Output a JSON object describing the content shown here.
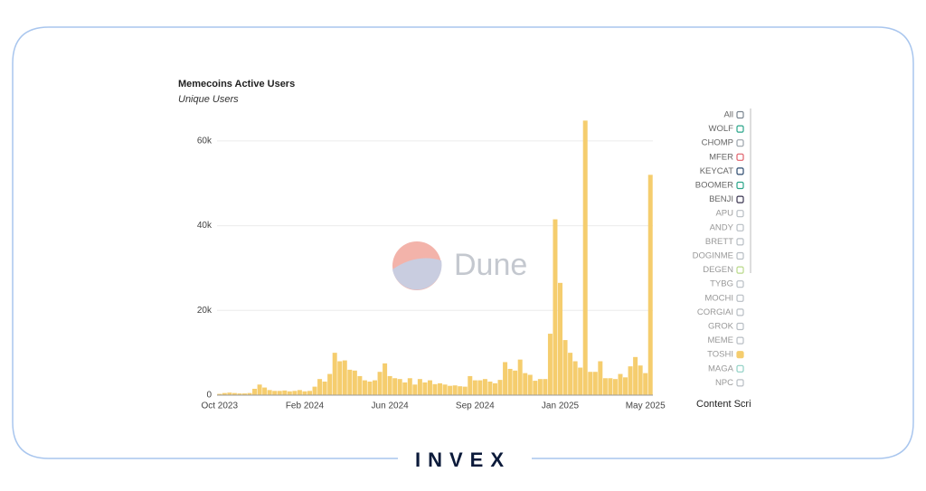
{
  "chart_data": {
    "type": "bar",
    "title": "Memecoins Active Users",
    "subtitle": "Unique Users",
    "watermark": "Dune",
    "categories": [
      "Oct 2023",
      null,
      null,
      null,
      null,
      null,
      null,
      null,
      null,
      null,
      null,
      null,
      null,
      null,
      null,
      null,
      null,
      "Feb 2024",
      null,
      null,
      null,
      null,
      null,
      null,
      null,
      null,
      null,
      null,
      null,
      null,
      null,
      null,
      null,
      null,
      "Jun 2024",
      null,
      null,
      null,
      null,
      null,
      null,
      null,
      null,
      null,
      null,
      null,
      null,
      null,
      null,
      null,
      null,
      "Sep 2024",
      null,
      null,
      null,
      null,
      null,
      null,
      null,
      null,
      null,
      null,
      null,
      null,
      null,
      null,
      null,
      null,
      "Jan 2025",
      null,
      null,
      null,
      null,
      null,
      null,
      null,
      null,
      null,
      null,
      null,
      null,
      null,
      null,
      null,
      null,
      "May 2025",
      null
    ],
    "values": [
      300,
      500,
      600,
      500,
      400,
      400,
      500,
      1500,
      2500,
      1800,
      1200,
      1000,
      1000,
      1100,
      900,
      1000,
      1200,
      900,
      1000,
      2000,
      3800,
      3200,
      5000,
      10000,
      8000,
      8200,
      6000,
      5800,
      4500,
      3500,
      3200,
      3500,
      5500,
      7500,
      4500,
      4000,
      3800,
      3000,
      4000,
      2500,
      3800,
      3000,
      3500,
      2600,
      2800,
      2500,
      2200,
      2300,
      2100,
      2000,
      4500,
      3500,
      3500,
      3800,
      3200,
      2800,
      3600,
      7800,
      6200,
      5800,
      8400,
      5200,
      4800,
      3400,
      3800,
      3800,
      14500,
      41500,
      26500,
      13000,
      10000,
      8000,
      6500,
      64800,
      5500,
      5500,
      8000,
      4000,
      4000,
      3800,
      5000,
      4200,
      6800,
      9000,
      7000,
      5200,
      52000
    ],
    "color": "#f5cd6e",
    "ylim": [
      0,
      70000
    ],
    "yticks": [
      0,
      {
        "value": 20000,
        "label": "20k"
      },
      {
        "value": 40000,
        "label": "40k"
      },
      {
        "value": 60000,
        "label": "60k"
      }
    ],
    "grid": true,
    "legend": [
      {
        "name": "All",
        "color": "#7a8590"
      },
      {
        "name": "WOLF",
        "color": "#2aa58a"
      },
      {
        "name": "CHOMP",
        "color": "#9aa2aa"
      },
      {
        "name": "MFER",
        "color": "#e0606a"
      },
      {
        "name": "KEYCAT",
        "color": "#2c4a6e"
      },
      {
        "name": "BOOMER",
        "color": "#2aa58a"
      },
      {
        "name": "BENJI",
        "color": "#3a3550"
      },
      {
        "name": "APU",
        "color": "#b8bec4"
      },
      {
        "name": "ANDY",
        "color": "#b8bec4"
      },
      {
        "name": "BRETT",
        "color": "#b8bec4"
      },
      {
        "name": "DOGINME",
        "color": "#b8bec4"
      },
      {
        "name": "DEGEN",
        "color": "#b9d98a"
      },
      {
        "name": "TYBG",
        "color": "#b8bec4"
      },
      {
        "name": "MOCHI",
        "color": "#b8bec4"
      },
      {
        "name": "CORGIAI",
        "color": "#b8bec4"
      },
      {
        "name": "GROK",
        "color": "#b8bec4"
      },
      {
        "name": "MEME",
        "color": "#b8bec4"
      },
      {
        "name": "TOSHI",
        "color": "#f5cd6e"
      },
      {
        "name": "MAGA",
        "color": "#8fd0c4"
      },
      {
        "name": "NPC",
        "color": "#b8bec4"
      }
    ],
    "legend_selected": "TOSHI",
    "footer_note": "Content Scri"
  },
  "brand": "INVEX"
}
